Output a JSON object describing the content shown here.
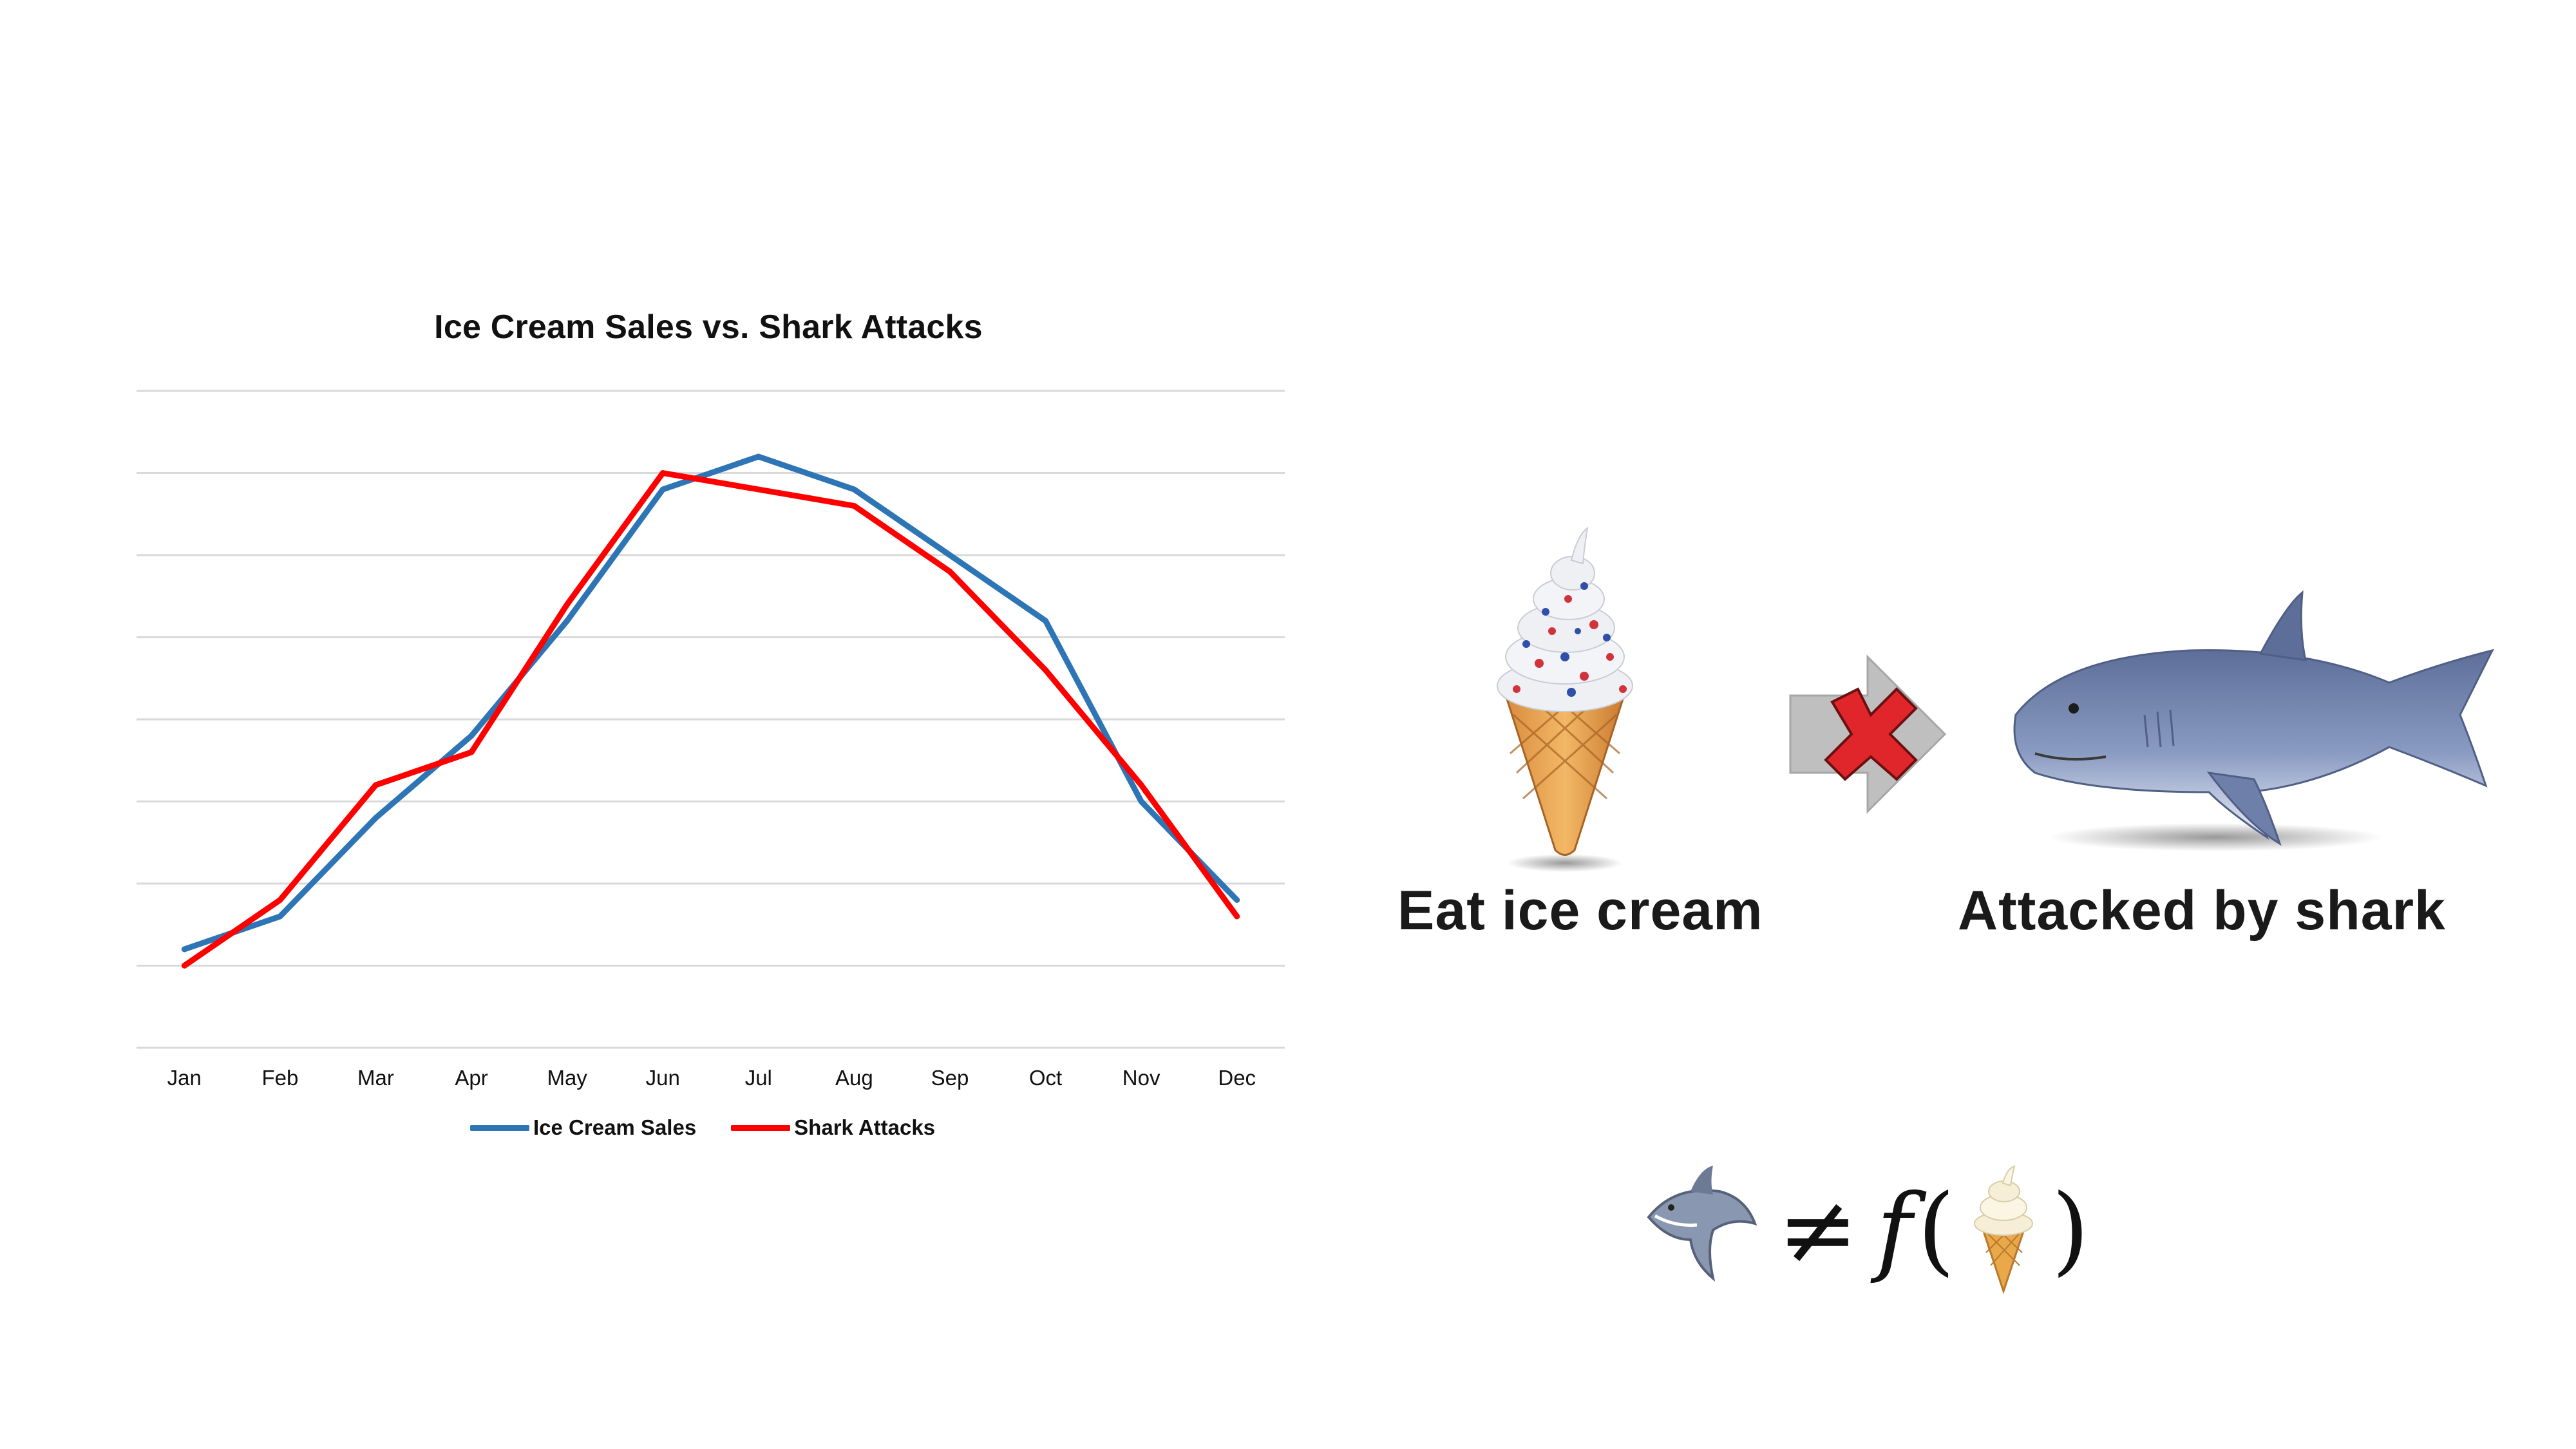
{
  "chart_data": {
    "type": "line",
    "title": "Ice Cream Sales vs. Shark Attacks",
    "categories": [
      "Jan",
      "Feb",
      "Mar",
      "Apr",
      "May",
      "Jun",
      "Jul",
      "Aug",
      "Sep",
      "Oct",
      "Nov",
      "Dec"
    ],
    "series": [
      {
        "name": "Ice Cream Sales",
        "color": "#2e75b6",
        "values": [
          1.2,
          1.6,
          2.8,
          3.8,
          5.2,
          6.8,
          7.2,
          6.8,
          6.0,
          5.2,
          3.0,
          1.8
        ]
      },
      {
        "name": "Shark Attacks",
        "color": "#ff0000",
        "values": [
          1.0,
          1.8,
          3.2,
          3.6,
          5.4,
          7.0,
          6.8,
          6.6,
          5.8,
          4.6,
          3.2,
          1.6
        ]
      }
    ],
    "ylim": [
      0,
      8
    ],
    "grid": true,
    "legend": "bottom",
    "xlabel": "",
    "ylabel": ""
  },
  "diagram": {
    "cause_caption": "Eat ice cream",
    "effect_caption": "Attacked by shark",
    "icons": [
      "ice-cream-cone-icon",
      "arrow-right-icon",
      "red-x-icon",
      "shark-icon"
    ]
  },
  "formula": {
    "neq": "≠",
    "func": "f",
    "open_paren": "(",
    "close_paren": ")"
  },
  "colors": {
    "grid": "#d9d9d9",
    "arrow": "#bfbfbf",
    "cross": "#e0262b",
    "shark": "#7486ac"
  }
}
